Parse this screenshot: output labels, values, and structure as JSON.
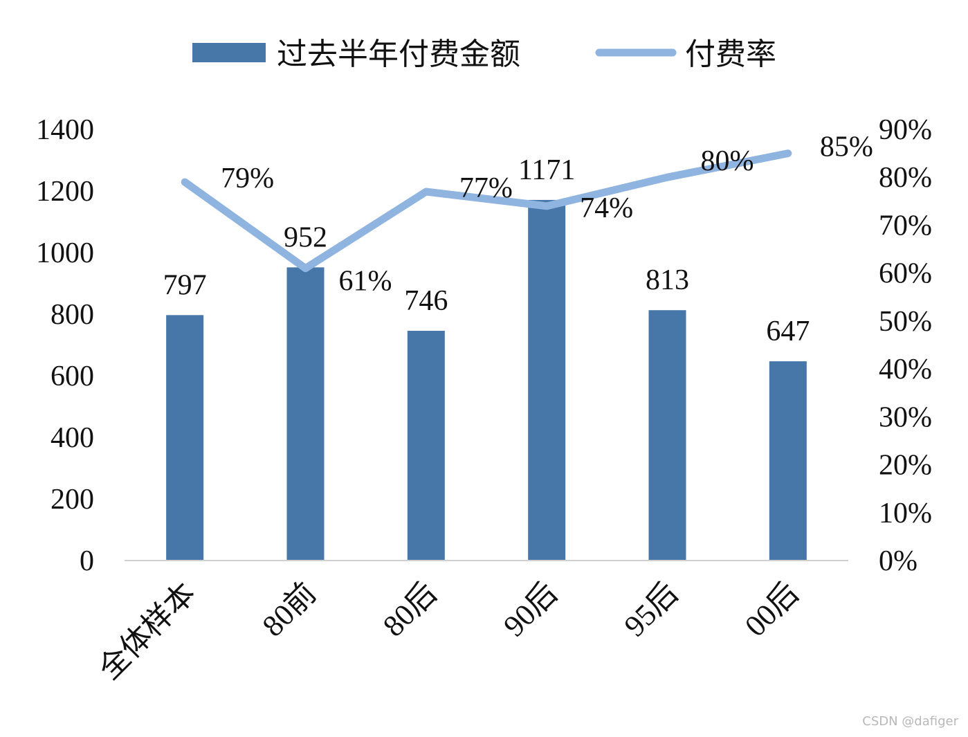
{
  "chart_data": {
    "type": "bar",
    "categories": [
      "全体样本",
      "80前",
      "80后",
      "90后",
      "95后",
      "00后"
    ],
    "series": [
      {
        "name": "过去半年付费金额",
        "type": "bar",
        "axis": "left",
        "values": [
          797,
          952,
          746,
          1171,
          813,
          647
        ],
        "labels": [
          "797",
          "952",
          "746",
          "1171",
          "813",
          "647"
        ],
        "color": "#4777a8"
      },
      {
        "name": "付费率",
        "type": "line",
        "axis": "right",
        "values": [
          0.79,
          0.61,
          0.77,
          0.74,
          0.8,
          0.85
        ],
        "labels": [
          "79%",
          "61%",
          "77%",
          "74%",
          "80%",
          "85%"
        ],
        "color": "#8fb4e0"
      }
    ],
    "y_left": {
      "min": 0,
      "max": 1400,
      "ticks": [
        "0",
        "200",
        "400",
        "600",
        "800",
        "1000",
        "1200",
        "1400"
      ]
    },
    "y_right": {
      "min": 0,
      "max": 0.9,
      "ticks": [
        "0%",
        "10%",
        "20%",
        "30%",
        "40%",
        "50%",
        "60%",
        "70%",
        "80%",
        "90%"
      ]
    },
    "legend": "top",
    "grid": false
  },
  "watermark": "CSDN @dafiger"
}
